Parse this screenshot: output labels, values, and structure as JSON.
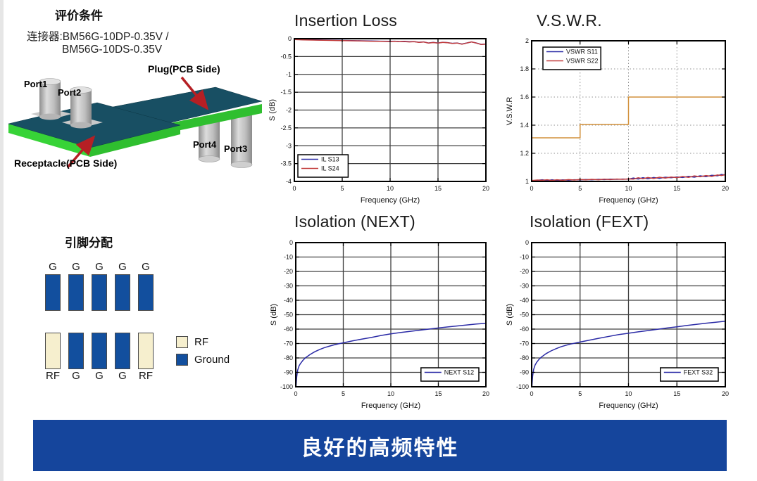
{
  "panel": {
    "title": "评价条件",
    "connector_line1": "连接器:BM56G-10DP-0.35V /",
    "connector_line2": "BM56G-10DS-0.35V",
    "figure_labels": {
      "port1": "Port1",
      "port2": "Port2",
      "port3": "Port3",
      "port4": "Port4",
      "plug": "Plug(PCB Side)",
      "receptacle": "Receptacle(PCB Side)"
    }
  },
  "pin_assignment": {
    "title": "引脚分配",
    "top_row": [
      {
        "label": "G",
        "type": "ground"
      },
      {
        "label": "G",
        "type": "ground"
      },
      {
        "label": "G",
        "type": "ground"
      },
      {
        "label": "G",
        "type": "ground"
      },
      {
        "label": "G",
        "type": "ground"
      }
    ],
    "bottom_row": [
      {
        "label": "RF",
        "type": "rf"
      },
      {
        "label": "G",
        "type": "ground"
      },
      {
        "label": "G",
        "type": "ground"
      },
      {
        "label": "G",
        "type": "ground"
      },
      {
        "label": "RF",
        "type": "rf"
      }
    ],
    "legend": [
      {
        "label": "RF",
        "type": "rf"
      },
      {
        "label": "Ground",
        "type": "ground"
      }
    ],
    "colors": {
      "rf": "#f6efce",
      "ground": "#124f9e"
    }
  },
  "banner": {
    "text": "良好的高频特性",
    "color": "#15459c"
  },
  "chart_data": [
    {
      "id": "il",
      "type": "line",
      "title": "Insertion Loss",
      "xlabel": "Frequency (GHz)",
      "ylabel": "S (dB)",
      "xlim": [
        0,
        20
      ],
      "ylim": [
        -4,
        0
      ],
      "xticks": [
        0,
        5,
        10,
        15,
        20
      ],
      "yticks": [
        0,
        -0.5,
        -1,
        -1.5,
        -2,
        -2.5,
        -3,
        -3.5,
        -4
      ],
      "grid": "solid",
      "legend_position": "bottom-left",
      "series": [
        {
          "name": "IL S13",
          "color": "#2b2ba6",
          "points": [
            [
              0,
              -0.02
            ],
            [
              1,
              -0.03
            ],
            [
              2,
              -0.035
            ],
            [
              3,
              -0.04
            ],
            [
              4,
              -0.045
            ],
            [
              5,
              -0.05
            ],
            [
              6,
              -0.055
            ],
            [
              7,
              -0.06
            ],
            [
              8,
              -0.065
            ],
            [
              9,
              -0.07
            ],
            [
              10,
              -0.075
            ],
            [
              10.5,
              -0.07
            ],
            [
              11,
              -0.08
            ],
            [
              11.5,
              -0.075
            ],
            [
              12,
              -0.085
            ],
            [
              12.5,
              -0.08
            ],
            [
              13,
              -0.1
            ],
            [
              13.5,
              -0.09
            ],
            [
              14,
              -0.12
            ],
            [
              14.5,
              -0.105
            ],
            [
              15,
              -0.12
            ],
            [
              15.5,
              -0.1
            ],
            [
              16,
              -0.11
            ],
            [
              16.5,
              -0.13
            ],
            [
              17,
              -0.12
            ],
            [
              17.5,
              -0.15
            ],
            [
              18,
              -0.12
            ],
            [
              18.5,
              -0.09
            ],
            [
              19,
              -0.12
            ],
            [
              19.5,
              -0.16
            ],
            [
              20,
              -0.15
            ]
          ]
        },
        {
          "name": "IL S24",
          "color": "#c23b3b",
          "points": [
            [
              0,
              -0.025
            ],
            [
              1,
              -0.033
            ],
            [
              2,
              -0.04
            ],
            [
              3,
              -0.043
            ],
            [
              4,
              -0.05
            ],
            [
              5,
              -0.053
            ],
            [
              6,
              -0.06
            ],
            [
              7,
              -0.063
            ],
            [
              8,
              -0.07
            ],
            [
              9,
              -0.073
            ],
            [
              10,
              -0.08
            ],
            [
              10.5,
              -0.073
            ],
            [
              11,
              -0.083
            ],
            [
              11.5,
              -0.08
            ],
            [
              12,
              -0.09
            ],
            [
              12.5,
              -0.083
            ],
            [
              13,
              -0.103
            ],
            [
              13.5,
              -0.093
            ],
            [
              14,
              -0.123
            ],
            [
              14.5,
              -0.108
            ],
            [
              15,
              -0.123
            ],
            [
              15.5,
              -0.103
            ],
            [
              16,
              -0.113
            ],
            [
              16.5,
              -0.133
            ],
            [
              17,
              -0.123
            ],
            [
              17.5,
              -0.153
            ],
            [
              18,
              -0.123
            ],
            [
              18.5,
              -0.093
            ],
            [
              19,
              -0.123
            ],
            [
              19.5,
              -0.163
            ],
            [
              20,
              -0.153
            ]
          ]
        }
      ]
    },
    {
      "id": "vswr",
      "type": "line",
      "title": "V.S.W.R.",
      "xlabel": "Frequency (GHz)",
      "ylabel": "V.S.W.R",
      "xlim": [
        0,
        20
      ],
      "ylim": [
        1,
        2
      ],
      "xticks": [
        0,
        5,
        10,
        15,
        20
      ],
      "yticks": [
        1,
        1.2,
        1.4,
        1.6,
        1.8,
        2
      ],
      "grid": "dotted",
      "legend_position": "top-left",
      "series": [
        {
          "name": "",
          "in_legend": false,
          "color": "#d2913c",
          "points": [
            [
              0,
              1.31
            ],
            [
              5,
              1.31
            ],
            [
              5,
              1.405
            ],
            [
              10,
              1.405
            ],
            [
              10,
              1.6
            ],
            [
              20,
              1.6
            ]
          ]
        },
        {
          "name": "VSWR S11",
          "color": "#2b2ba6",
          "points": [
            [
              0,
              1.004
            ],
            [
              0.6,
              1.008
            ],
            [
              1.1,
              1.012
            ],
            [
              1.6,
              1.006
            ],
            [
              2.1,
              1.012
            ],
            [
              2.6,
              1.007
            ],
            [
              3.2,
              1.011
            ],
            [
              3.8,
              1.009
            ],
            [
              4.4,
              1.012
            ],
            [
              5,
              1.011
            ],
            [
              5.6,
              1.014
            ],
            [
              6.2,
              1.012
            ],
            [
              6.9,
              1.015
            ],
            [
              7.5,
              1.013
            ],
            [
              8.1,
              1.016
            ],
            [
              8.8,
              1.015
            ],
            [
              9.4,
              1.017
            ],
            [
              10,
              1.016
            ],
            [
              10.5,
              1.024
            ],
            [
              11,
              1.017
            ],
            [
              11.5,
              1.027
            ],
            [
              12,
              1.019
            ],
            [
              12.6,
              1.028
            ],
            [
              13.2,
              1.022
            ],
            [
              13.8,
              1.03
            ],
            [
              14.4,
              1.026
            ],
            [
              15,
              1.032
            ],
            [
              15.6,
              1.028
            ],
            [
              16.2,
              1.036
            ],
            [
              16.8,
              1.03
            ],
            [
              17.4,
              1.04
            ],
            [
              18,
              1.034
            ],
            [
              18.6,
              1.044
            ],
            [
              19.2,
              1.04
            ],
            [
              19.6,
              1.05
            ],
            [
              20,
              1.045
            ]
          ]
        },
        {
          "name": "VSWR S22",
          "color": "#c23b3b",
          "points": [
            [
              0,
              1.006
            ],
            [
              0.6,
              1.01
            ],
            [
              1.1,
              1.008
            ],
            [
              1.6,
              1.012
            ],
            [
              2.1,
              1.007
            ],
            [
              2.6,
              1.012
            ],
            [
              3.2,
              1.008
            ],
            [
              3.8,
              1.013
            ],
            [
              4.4,
              1.01
            ],
            [
              5,
              1.014
            ],
            [
              5.6,
              1.011
            ],
            [
              6.2,
              1.015
            ],
            [
              6.9,
              1.012
            ],
            [
              7.5,
              1.016
            ],
            [
              8.1,
              1.013
            ],
            [
              8.8,
              1.017
            ],
            [
              9.4,
              1.015
            ],
            [
              10,
              1.018
            ],
            [
              10.5,
              1.016
            ],
            [
              11,
              1.026
            ],
            [
              11.5,
              1.019
            ],
            [
              12,
              1.028
            ],
            [
              12.6,
              1.021
            ],
            [
              13.2,
              1.03
            ],
            [
              13.8,
              1.024
            ],
            [
              14.4,
              1.031
            ],
            [
              15,
              1.027
            ],
            [
              15.6,
              1.035
            ],
            [
              16.2,
              1.029
            ],
            [
              16.8,
              1.039
            ],
            [
              17.4,
              1.033
            ],
            [
              18,
              1.042
            ],
            [
              18.6,
              1.036
            ],
            [
              19.2,
              1.046
            ],
            [
              19.6,
              1.042
            ],
            [
              20,
              1.048
            ]
          ]
        }
      ]
    },
    {
      "id": "next",
      "type": "line",
      "title": "Isolation (NEXT)",
      "xlabel": "Frequency (GHz)",
      "ylabel": "S (dB)",
      "xlim": [
        0,
        20
      ],
      "ylim": [
        -100,
        0
      ],
      "xticks": [
        0,
        5,
        10,
        15,
        20
      ],
      "yticks": [
        0,
        -10,
        -20,
        -30,
        -40,
        -50,
        -60,
        -70,
        -80,
        -90,
        -100
      ],
      "grid": "solid",
      "legend_position": "bottom-right",
      "series": [
        {
          "name": "NEXT S12",
          "color": "#2b2ba6",
          "points": [
            [
              0.02,
              -100
            ],
            [
              0.1,
              -93
            ],
            [
              0.2,
              -88.5
            ],
            [
              0.35,
              -85.5
            ],
            [
              0.5,
              -83.8
            ],
            [
              0.75,
              -81.7
            ],
            [
              1,
              -80
            ],
            [
              1.5,
              -77.6
            ],
            [
              2,
              -75.7
            ],
            [
              2.5,
              -74.2
            ],
            [
              3,
              -72.9
            ],
            [
              3.5,
              -71.9
            ],
            [
              4,
              -71
            ],
            [
              4.5,
              -70.2
            ],
            [
              5,
              -69.5
            ],
            [
              6,
              -68.1
            ],
            [
              7,
              -66.9
            ],
            [
              8,
              -65.7
            ],
            [
              9,
              -64.4
            ],
            [
              10,
              -63.3
            ],
            [
              11,
              -62.4
            ],
            [
              12,
              -61.6
            ],
            [
              13,
              -60.8
            ],
            [
              14,
              -60
            ],
            [
              15,
              -59.2
            ],
            [
              16,
              -58.5
            ],
            [
              17,
              -57.8
            ],
            [
              18,
              -57.1
            ],
            [
              19,
              -56.5
            ],
            [
              20,
              -56
            ]
          ]
        }
      ]
    },
    {
      "id": "fext",
      "type": "line",
      "title": "Isolation (FEXT)",
      "xlabel": "Frequency (GHz)",
      "ylabel": "S (dB)",
      "xlim": [
        0,
        20
      ],
      "ylim": [
        -100,
        0
      ],
      "xticks": [
        0,
        5,
        10,
        15,
        20
      ],
      "yticks": [
        0,
        -10,
        -20,
        -30,
        -40,
        -50,
        -60,
        -70,
        -80,
        -90,
        -100
      ],
      "grid": "solid",
      "legend_position": "bottom-right",
      "series": [
        {
          "name": "FEXT S32",
          "color": "#2b2ba6",
          "points": [
            [
              0.02,
              -100
            ],
            [
              0.1,
              -92.5
            ],
            [
              0.2,
              -88
            ],
            [
              0.35,
              -85
            ],
            [
              0.5,
              -83.2
            ],
            [
              0.75,
              -81
            ],
            [
              1,
              -79.4
            ],
            [
              1.5,
              -77
            ],
            [
              2,
              -75.1
            ],
            [
              2.5,
              -73.6
            ],
            [
              3,
              -72.3
            ],
            [
              3.5,
              -71.3
            ],
            [
              4,
              -70.4
            ],
            [
              4.5,
              -69.7
            ],
            [
              5,
              -69
            ],
            [
              6,
              -67.6
            ],
            [
              7,
              -66.3
            ],
            [
              8,
              -65
            ],
            [
              9,
              -63.8
            ],
            [
              10,
              -62.9
            ],
            [
              11,
              -61.9
            ],
            [
              12,
              -61
            ],
            [
              13,
              -60.1
            ],
            [
              14,
              -59.2
            ],
            [
              15,
              -58.4
            ],
            [
              16,
              -57.5
            ],
            [
              17,
              -56.7
            ],
            [
              18,
              -55.9
            ],
            [
              19,
              -55.2
            ],
            [
              20,
              -54.5
            ]
          ]
        }
      ]
    }
  ]
}
